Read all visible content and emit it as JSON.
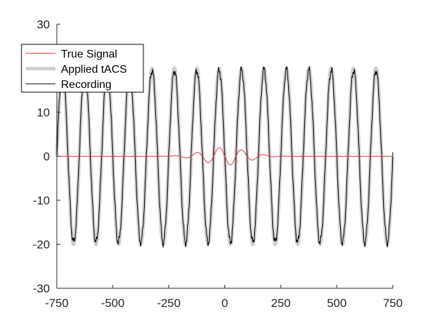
{
  "chart_data": {
    "type": "line",
    "title": "",
    "xlabel": "",
    "ylabel": "",
    "xlim": [
      -750,
      750
    ],
    "ylim": [
      -30,
      30
    ],
    "xticks": [
      -750,
      -500,
      -250,
      0,
      250,
      500,
      750
    ],
    "yticks": [
      -30,
      -20,
      -10,
      0,
      10,
      20,
      30
    ],
    "grid": false,
    "legend_position": "top-left",
    "legend": [
      "True Signal",
      "Applied tACS",
      "Recording"
    ],
    "series": [
      {
        "name": "True Signal",
        "color": "#e8312f",
        "style": "thin",
        "description_params": {
          "carrier_period": 100,
          "gaussian_center": 0,
          "gaussian_sigma": 95,
          "peak_amplitude": 2.0
        },
        "x": [
          -750,
          -300,
          -200,
          -150,
          -100,
          -75,
          -50,
          -25,
          0,
          25,
          50,
          75,
          100,
          125,
          150,
          200,
          300,
          750
        ],
        "y": [
          0,
          0,
          -0.1,
          0.4,
          -1.2,
          -0.3,
          1.6,
          0.8,
          -1.9,
          0.6,
          1.9,
          -0.4,
          -1.5,
          0.2,
          0.9,
          0.1,
          0,
          0
        ]
      },
      {
        "name": "Applied tACS",
        "color": "#cfcfcf",
        "style": "thick",
        "amplitude": 20,
        "period": 100,
        "phase_zero_crossing_x": -750,
        "x_range": [
          -750,
          750
        ]
      },
      {
        "name": "Recording",
        "color": "#000000",
        "style": "thin",
        "amplitude": 19.6,
        "period": 100,
        "phase_zero_crossing_x": -750,
        "x_range": [
          -750,
          750
        ]
      }
    ]
  }
}
